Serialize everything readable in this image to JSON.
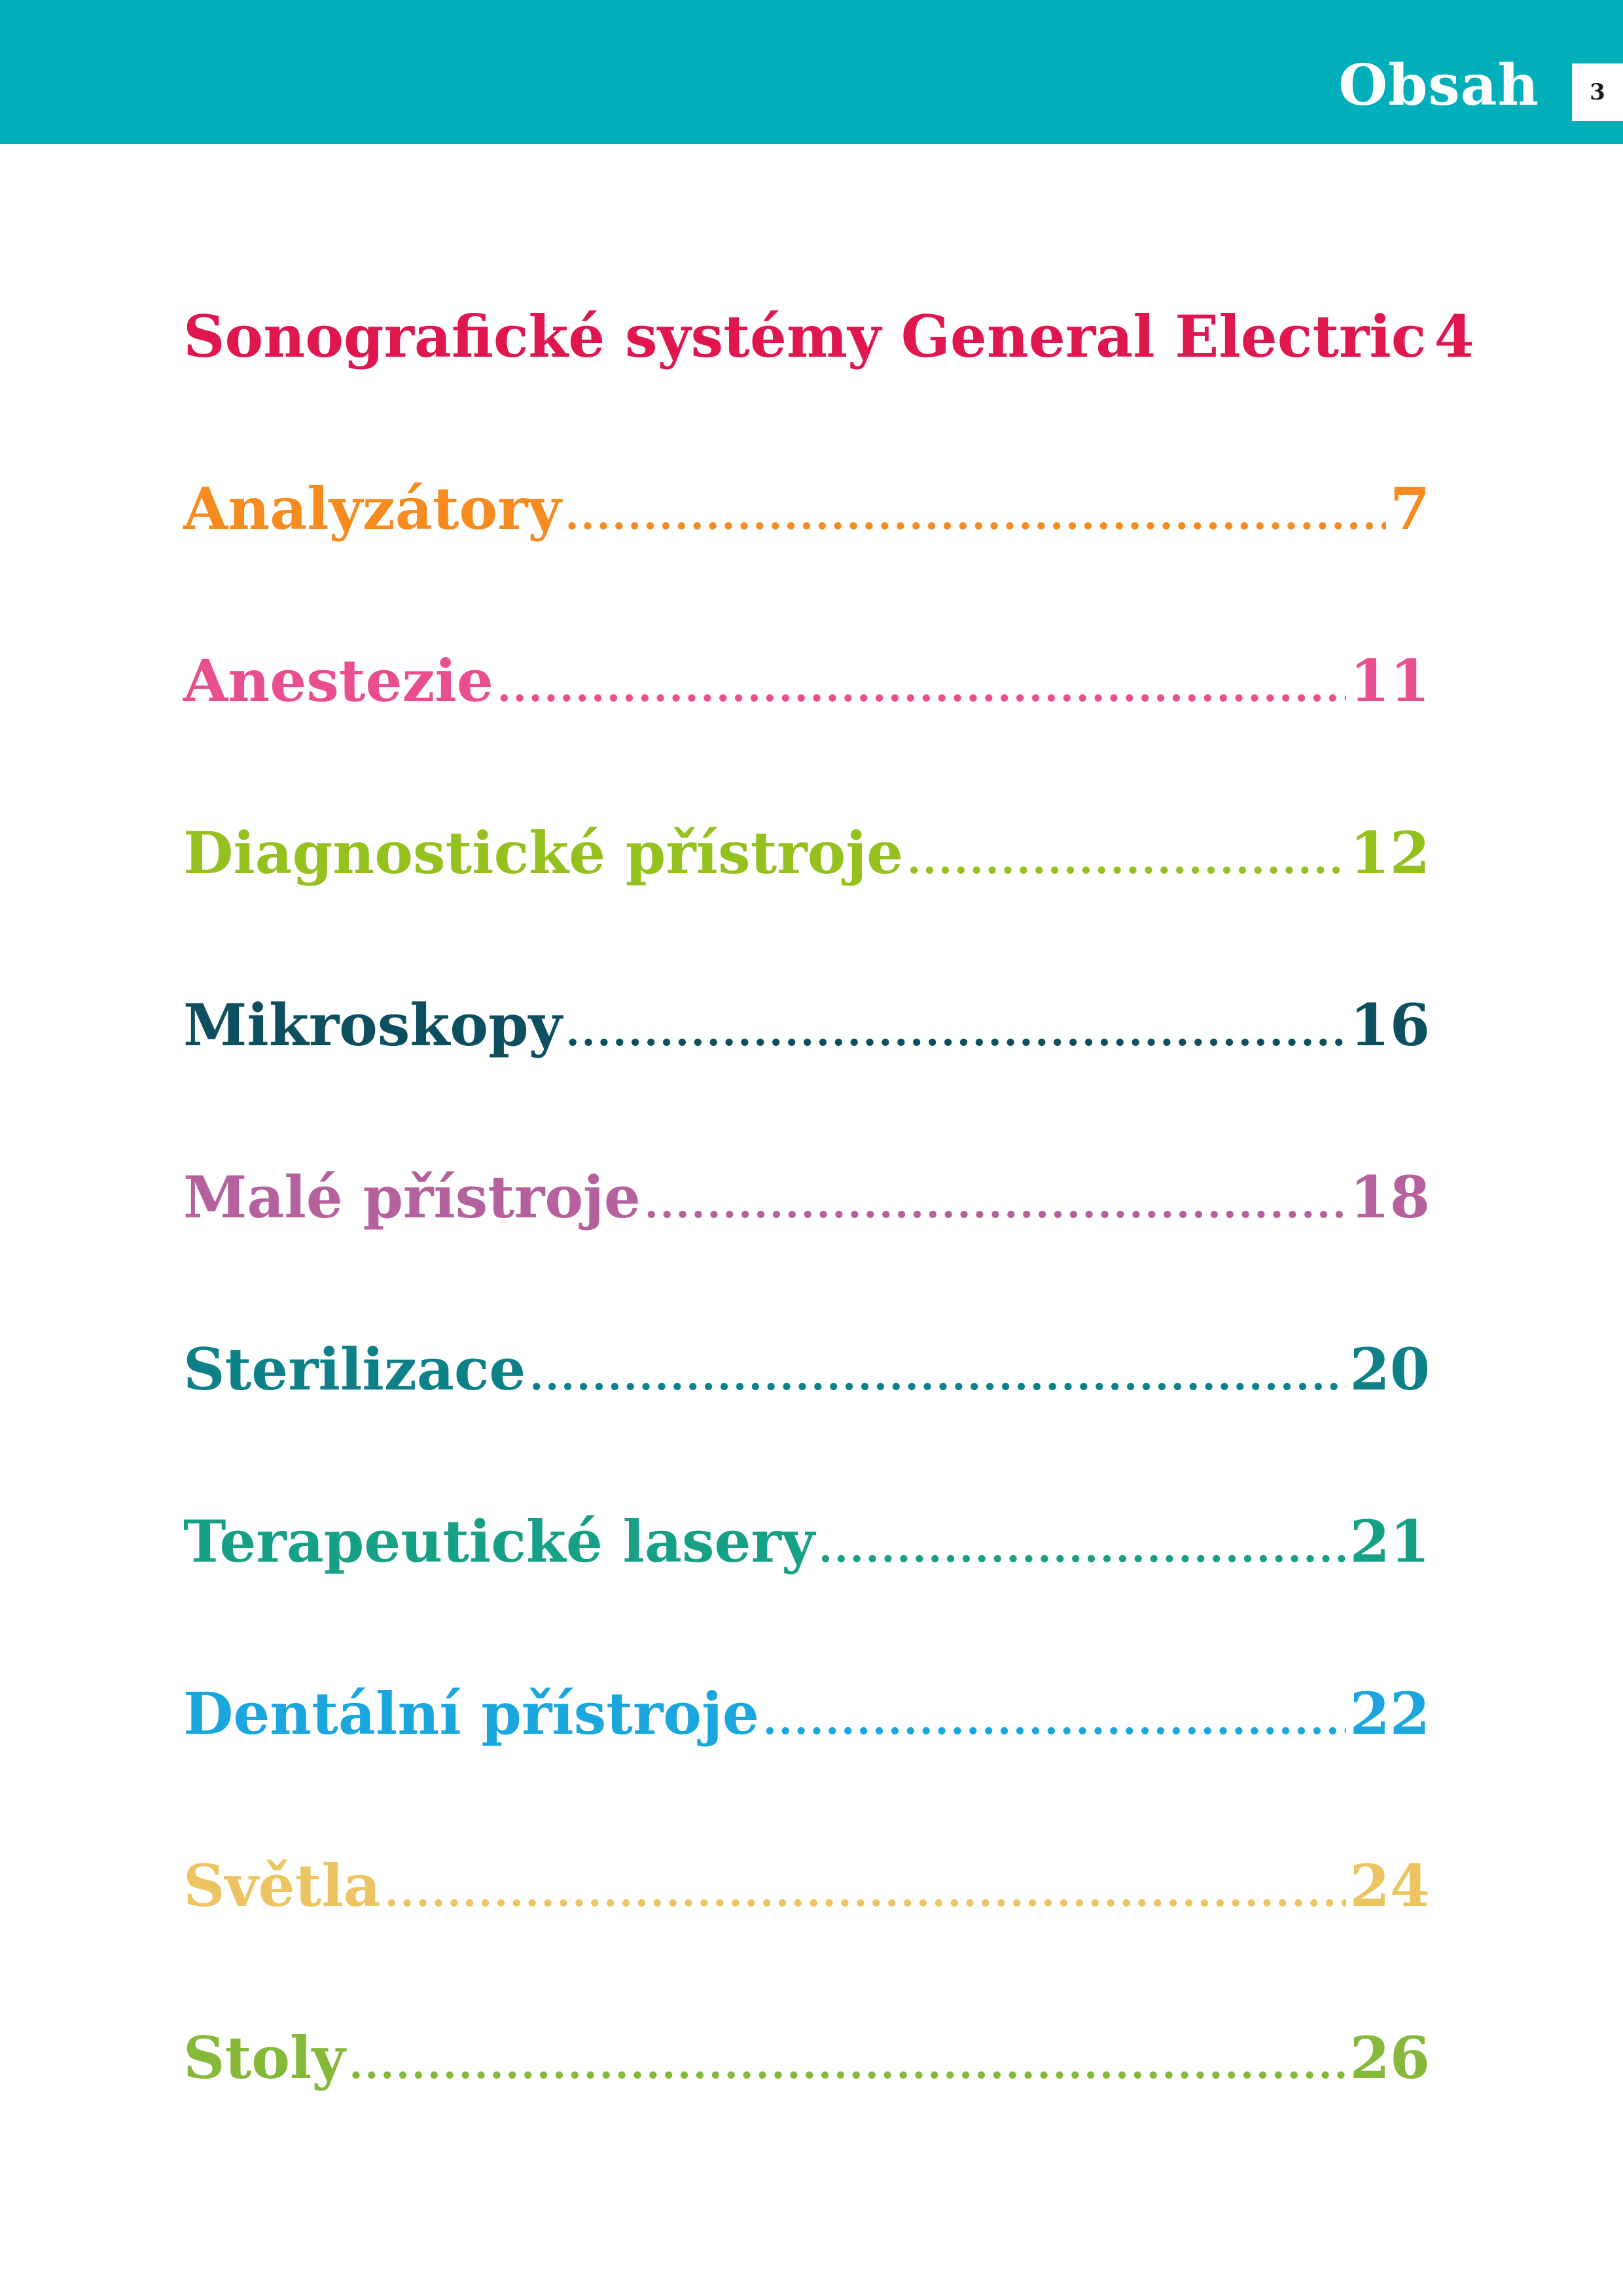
{
  "header": {
    "title": "Obsah",
    "page_number": "3",
    "background_color": "#00afb9"
  },
  "toc": {
    "entries": [
      {
        "label": "Sonografické systémy General Electric",
        "page": "4",
        "color": "#e0174f"
      },
      {
        "label": "Analyzátory",
        "page": "7",
        "color": "#f68b1f"
      },
      {
        "label": "Anestezie",
        "page": "11",
        "color": "#e94f8f"
      },
      {
        "label": "Diagnostické přístroje",
        "page": "12",
        "color": "#95c11f"
      },
      {
        "label": "Mikroskopy",
        "page": "16",
        "color": "#0d4f5e"
      },
      {
        "label": "Malé přístroje",
        "page": "18",
        "color": "#b5619e"
      },
      {
        "label": "Sterilizace",
        "page": "20",
        "color": "#0d8088"
      },
      {
        "label": "Terapeutické lasery",
        "page": "21",
        "color": "#16a085"
      },
      {
        "label": "Dentální přístroje",
        "page": "22",
        "color": "#1ba7dd"
      },
      {
        "label": "Světla",
        "page": "24",
        "color": "#ecc462"
      },
      {
        "label": "Stoly",
        "page": "26",
        "color": "#86b83a"
      }
    ]
  }
}
